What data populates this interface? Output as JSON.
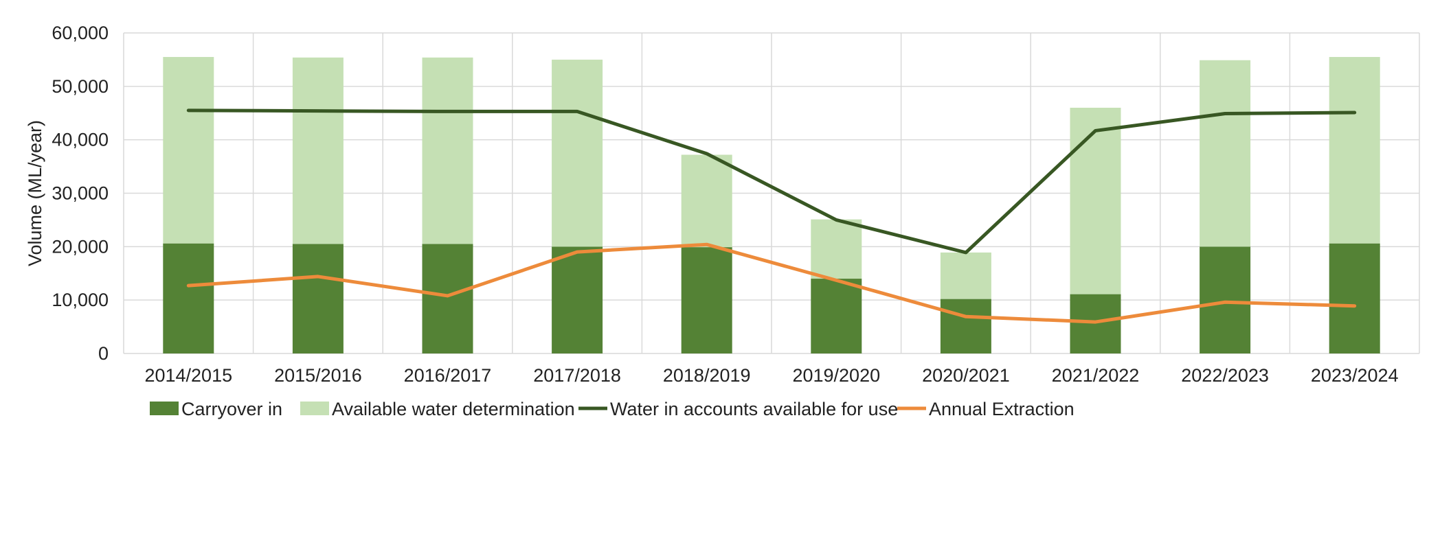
{
  "chart_data": {
    "type": "bar",
    "categories": [
      "2014/2015",
      "2015/2016",
      "2016/2017",
      "2017/2018",
      "2018/2019",
      "2019/2020",
      "2020/2021",
      "2021/2022",
      "2022/2023",
      "2023/2024"
    ],
    "stacked_bars": [
      {
        "name": "Carryover in",
        "color": "#548235",
        "values": [
          20600,
          20500,
          20500,
          20000,
          19900,
          14000,
          10200,
          11100,
          20000,
          20600
        ]
      },
      {
        "name": "Available water determination",
        "color": "#c5e0b4",
        "values": [
          34900,
          34900,
          34900,
          35000,
          17300,
          11100,
          8700,
          34900,
          34900,
          34900
        ]
      }
    ],
    "lines": [
      {
        "name": "Water in accounts available for use",
        "color": "#385723",
        "values": [
          45500,
          45400,
          45300,
          45300,
          37400,
          25000,
          18900,
          41700,
          44900,
          45100
        ]
      },
      {
        "name": "Annual Extraction",
        "color": "#ed8b3b",
        "values": [
          12700,
          14400,
          10800,
          19000,
          20400,
          13700,
          6900,
          5900,
          9600,
          8900
        ]
      }
    ],
    "ylabel": "Volume (ML/year)",
    "xlabel": "",
    "ylim": [
      0,
      60000
    ],
    "yticks": [
      "0",
      "10,000",
      "20,000",
      "30,000",
      "40,000",
      "50,000",
      "60,000"
    ],
    "grid": true,
    "legend_position": "bottom"
  }
}
